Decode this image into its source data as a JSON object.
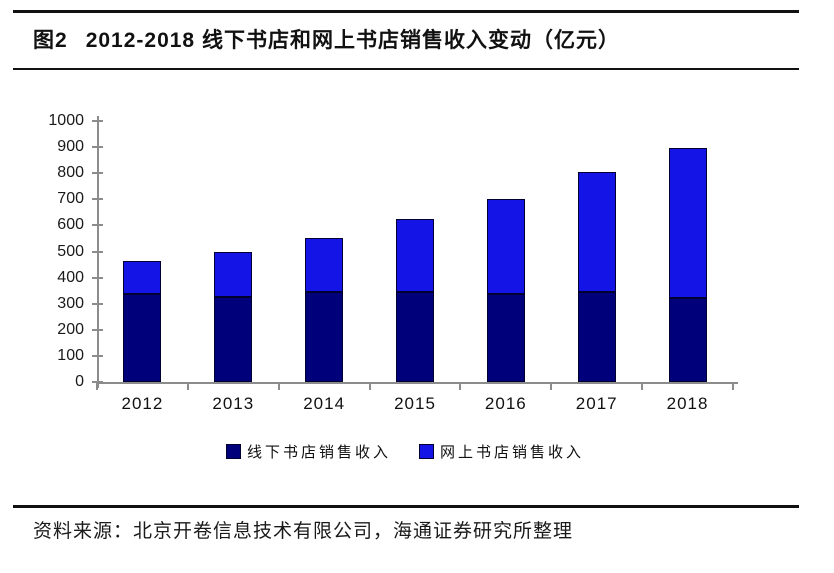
{
  "figure": {
    "label": "图2",
    "title": "2012-2018 线下书店和网上书店销售收入变动（亿元）"
  },
  "chart_data": {
    "type": "bar",
    "stacked": true,
    "categories": [
      "2012",
      "2013",
      "2014",
      "2015",
      "2016",
      "2017",
      "2018"
    ],
    "series": [
      {
        "name": "线下书店销售收入",
        "color": "#00007B",
        "values": [
          336,
          325,
          344,
          344,
          336,
          344,
          322
        ]
      },
      {
        "name": "网上书店销售收入",
        "color": "#1414E6",
        "values": [
          128,
          175,
          206,
          280,
          365,
          459,
          573
        ]
      }
    ],
    "totals": [
      464,
      500,
      550,
      624,
      701,
      803,
      895
    ],
    "title": "2012-2018 线下书店和网上书店销售收入变动（亿元）",
    "xlabel": "",
    "ylabel": "",
    "ylim": [
      0,
      1000
    ],
    "ytick_step": 100,
    "grid": false,
    "legend_position": "bottom",
    "axis_color": "#8C8C8C",
    "bar_border_color": "#000030"
  },
  "footer": {
    "source": "资料来源：北京开卷信息技术有限公司，海通证券研究所整理"
  }
}
